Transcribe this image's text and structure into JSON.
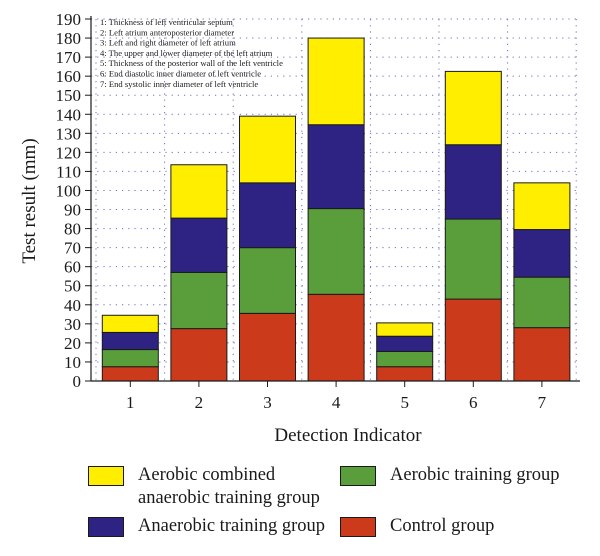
{
  "chart_data": {
    "type": "bar",
    "stacked": true,
    "categories": [
      "1",
      "2",
      "3",
      "4",
      "5",
      "6",
      "7"
    ],
    "series": [
      {
        "name": "Control group",
        "color": "#cc3a1c",
        "values": [
          7.5,
          27.5,
          35.5,
          45.5,
          7.5,
          43,
          28
        ]
      },
      {
        "name": "Aerobic training group",
        "color": "#5a9e3c",
        "values": [
          9,
          29.5,
          34.5,
          45,
          8,
          42,
          26.5
        ]
      },
      {
        "name": "Anaerobic training group",
        "color": "#2e2383",
        "values": [
          9,
          28.5,
          34,
          44,
          8,
          39,
          25
        ]
      },
      {
        "name": "Aerobic combined anaerobic training group",
        "color": "#ffee00",
        "values": [
          9,
          28,
          35,
          45.5,
          7,
          38.5,
          24.5
        ]
      }
    ],
    "xlabel": "Detection Indicator",
    "ylabel": "Test result (mm)",
    "ylim": [
      0,
      190
    ],
    "yticks": [
      "0",
      "10",
      "20",
      "30",
      "40",
      "50",
      "60",
      "70",
      "80",
      "90",
      "100",
      "110",
      "120",
      "130",
      "140",
      "150",
      "160",
      "170",
      "180",
      "190"
    ],
    "grid": "dotted",
    "legend_position": "bottom",
    "notes": [
      "1: Thickness of left ventricular septum",
      "2: Left atrium anteroposterior diameter",
      "3: Left and right diameter of left atrium",
      "4: The upper and lower diameter of the left atrium",
      "5: Thickness of the posterior wall of the left ventricle",
      "6: End diastolic inner diameter of left ventricle",
      "7: End systolic inner diameter of left ventricle"
    ]
  },
  "legend": {
    "items": [
      {
        "label_line1": "Aerobic combined",
        "label_line2": "anaerobic training group",
        "color": "#ffee00"
      },
      {
        "label_line1": "Aerobic training group",
        "label_line2": "",
        "color": "#5a9e3c"
      },
      {
        "label_line1": "Anaerobic training group",
        "label_line2": "",
        "color": "#2e2383"
      },
      {
        "label_line1": "Control group",
        "label_line2": "",
        "color": "#cc3a1c"
      }
    ]
  }
}
